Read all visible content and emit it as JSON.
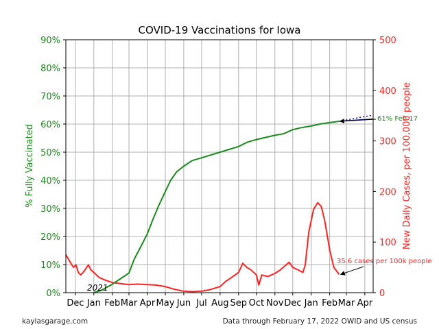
{
  "footer": {
    "left": "kaylasgarage.com",
    "right": "Data through February 17, 2022 OWID and US census"
  },
  "colors": {
    "vaccinated": "#1a8a1a",
    "cases": "#ff2020",
    "projection": "#00008b",
    "grid": "#b0b0b0"
  },
  "chart_data": {
    "type": "line",
    "title": "COVID-19 Vaccinations for Iowa",
    "x_tick_labels": [
      "Dec",
      "Jan",
      "Feb",
      "Mar",
      "Apr",
      "May",
      "Jun",
      "Jul",
      "Aug",
      "Sep",
      "Oct",
      "Nov",
      "Dec",
      "Jan",
      "Feb",
      "Mar",
      "Apr"
    ],
    "x_dates": [
      "2020-12-01",
      "2021-01-01",
      "2021-02-01",
      "2021-03-01",
      "2021-04-01",
      "2021-05-01",
      "2021-06-01",
      "2021-07-01",
      "2021-08-01",
      "2021-09-01",
      "2021-10-01",
      "2021-11-01",
      "2021-12-01",
      "2022-01-01",
      "2022-02-01",
      "2022-03-01",
      "2022-04-01"
    ],
    "xlim": [
      "2020-11-15",
      "2022-04-15"
    ],
    "year_annotation": "2021",
    "left_axis": {
      "label": "% Fully Vaccinated",
      "ylim": [
        0,
        90
      ],
      "ticks": [
        0,
        10,
        20,
        30,
        40,
        50,
        60,
        70,
        80,
        90
      ],
      "tick_labels": [
        "0%",
        "10%",
        "20%",
        "30%",
        "40%",
        "50%",
        "60%",
        "70%",
        "80%",
        "90%"
      ]
    },
    "right_axis": {
      "label": "New Daily Cases, per 100,000 people",
      "ylim": [
        0,
        500
      ],
      "ticks": [
        0,
        100,
        200,
        300,
        400,
        500
      ],
      "tick_labels": [
        "0",
        "100",
        "200",
        "300",
        "400",
        "500"
      ]
    },
    "series": [
      {
        "axis": "left",
        "values": [
          [
            "2021-01-01",
            0
          ],
          [
            "2021-01-15",
            1
          ],
          [
            "2021-02-01",
            3
          ],
          [
            "2021-02-15",
            5
          ],
          [
            "2021-03-01",
            7
          ],
          [
            "2021-03-10",
            12
          ],
          [
            "2021-03-20",
            16
          ],
          [
            "2021-04-01",
            21
          ],
          [
            "2021-04-10",
            26
          ],
          [
            "2021-04-20",
            31
          ],
          [
            "2021-05-01",
            36
          ],
          [
            "2021-05-10",
            40
          ],
          [
            "2021-05-20",
            43
          ],
          [
            "2021-06-01",
            45
          ],
          [
            "2021-06-15",
            47
          ],
          [
            "2021-07-01",
            48
          ],
          [
            "2021-08-01",
            50
          ],
          [
            "2021-09-01",
            52
          ],
          [
            "2021-09-15",
            53.5
          ],
          [
            "2021-10-01",
            54.5
          ],
          [
            "2021-11-01",
            56
          ],
          [
            "2021-11-15",
            56.5
          ],
          [
            "2021-12-01",
            58
          ],
          [
            "2021-12-15",
            58.7
          ],
          [
            "2022-01-01",
            59.3
          ],
          [
            "2022-01-15",
            60
          ],
          [
            "2022-02-01",
            60.5
          ],
          [
            "2022-02-17",
            61
          ]
        ]
      },
      {
        "axis": "right",
        "values": [
          [
            "2020-11-15",
            75
          ],
          [
            "2020-11-20",
            65
          ],
          [
            "2020-11-25",
            55
          ],
          [
            "2020-11-28",
            50
          ],
          [
            "2020-12-02",
            55
          ],
          [
            "2020-12-06",
            40
          ],
          [
            "2020-12-10",
            35
          ],
          [
            "2020-12-14",
            40
          ],
          [
            "2020-12-20",
            50
          ],
          [
            "2020-12-23",
            55
          ],
          [
            "2020-12-27",
            45
          ],
          [
            "2021-01-01",
            40
          ],
          [
            "2021-01-10",
            30
          ],
          [
            "2021-01-20",
            25
          ],
          [
            "2021-02-01",
            20
          ],
          [
            "2021-02-15",
            18
          ],
          [
            "2021-03-01",
            16
          ],
          [
            "2021-03-15",
            17
          ],
          [
            "2021-04-01",
            16
          ],
          [
            "2021-04-15",
            15
          ],
          [
            "2021-05-01",
            12
          ],
          [
            "2021-05-15",
            7
          ],
          [
            "2021-06-01",
            3
          ],
          [
            "2021-06-15",
            2
          ],
          [
            "2021-07-01",
            3
          ],
          [
            "2021-07-15",
            6
          ],
          [
            "2021-08-01",
            12
          ],
          [
            "2021-08-10",
            22
          ],
          [
            "2021-08-20",
            30
          ],
          [
            "2021-09-01",
            40
          ],
          [
            "2021-09-08",
            58
          ],
          [
            "2021-09-15",
            50
          ],
          [
            "2021-09-22",
            45
          ],
          [
            "2021-10-01",
            35
          ],
          [
            "2021-10-05",
            15
          ],
          [
            "2021-10-10",
            35
          ],
          [
            "2021-10-20",
            32
          ],
          [
            "2021-11-01",
            38
          ],
          [
            "2021-11-10",
            45
          ],
          [
            "2021-11-20",
            55
          ],
          [
            "2021-11-25",
            60
          ],
          [
            "2021-12-01",
            50
          ],
          [
            "2021-12-10",
            45
          ],
          [
            "2021-12-18",
            40
          ],
          [
            "2021-12-22",
            55
          ],
          [
            "2021-12-28",
            120
          ],
          [
            "2022-01-05",
            165
          ],
          [
            "2022-01-12",
            178
          ],
          [
            "2022-01-18",
            170
          ],
          [
            "2022-01-24",
            140
          ],
          [
            "2022-02-01",
            85
          ],
          [
            "2022-02-08",
            50
          ],
          [
            "2022-02-17",
            36
          ]
        ]
      }
    ],
    "projection_line": [
      [
        "2022-02-17",
        61
      ],
      [
        "2022-04-15",
        63.2
      ]
    ],
    "flat_line": [
      [
        "2022-02-17",
        61
      ],
      [
        "2022-04-15",
        61.8
      ]
    ],
    "annotations": [
      {
        "text": "61% Feb 17",
        "axis": "left",
        "target": [
          "2022-02-17",
          61
        ]
      },
      {
        "text": "35.6 cases per 100k people",
        "axis": "right",
        "target": [
          "2022-02-17",
          36
        ]
      }
    ],
    "grid": true
  }
}
